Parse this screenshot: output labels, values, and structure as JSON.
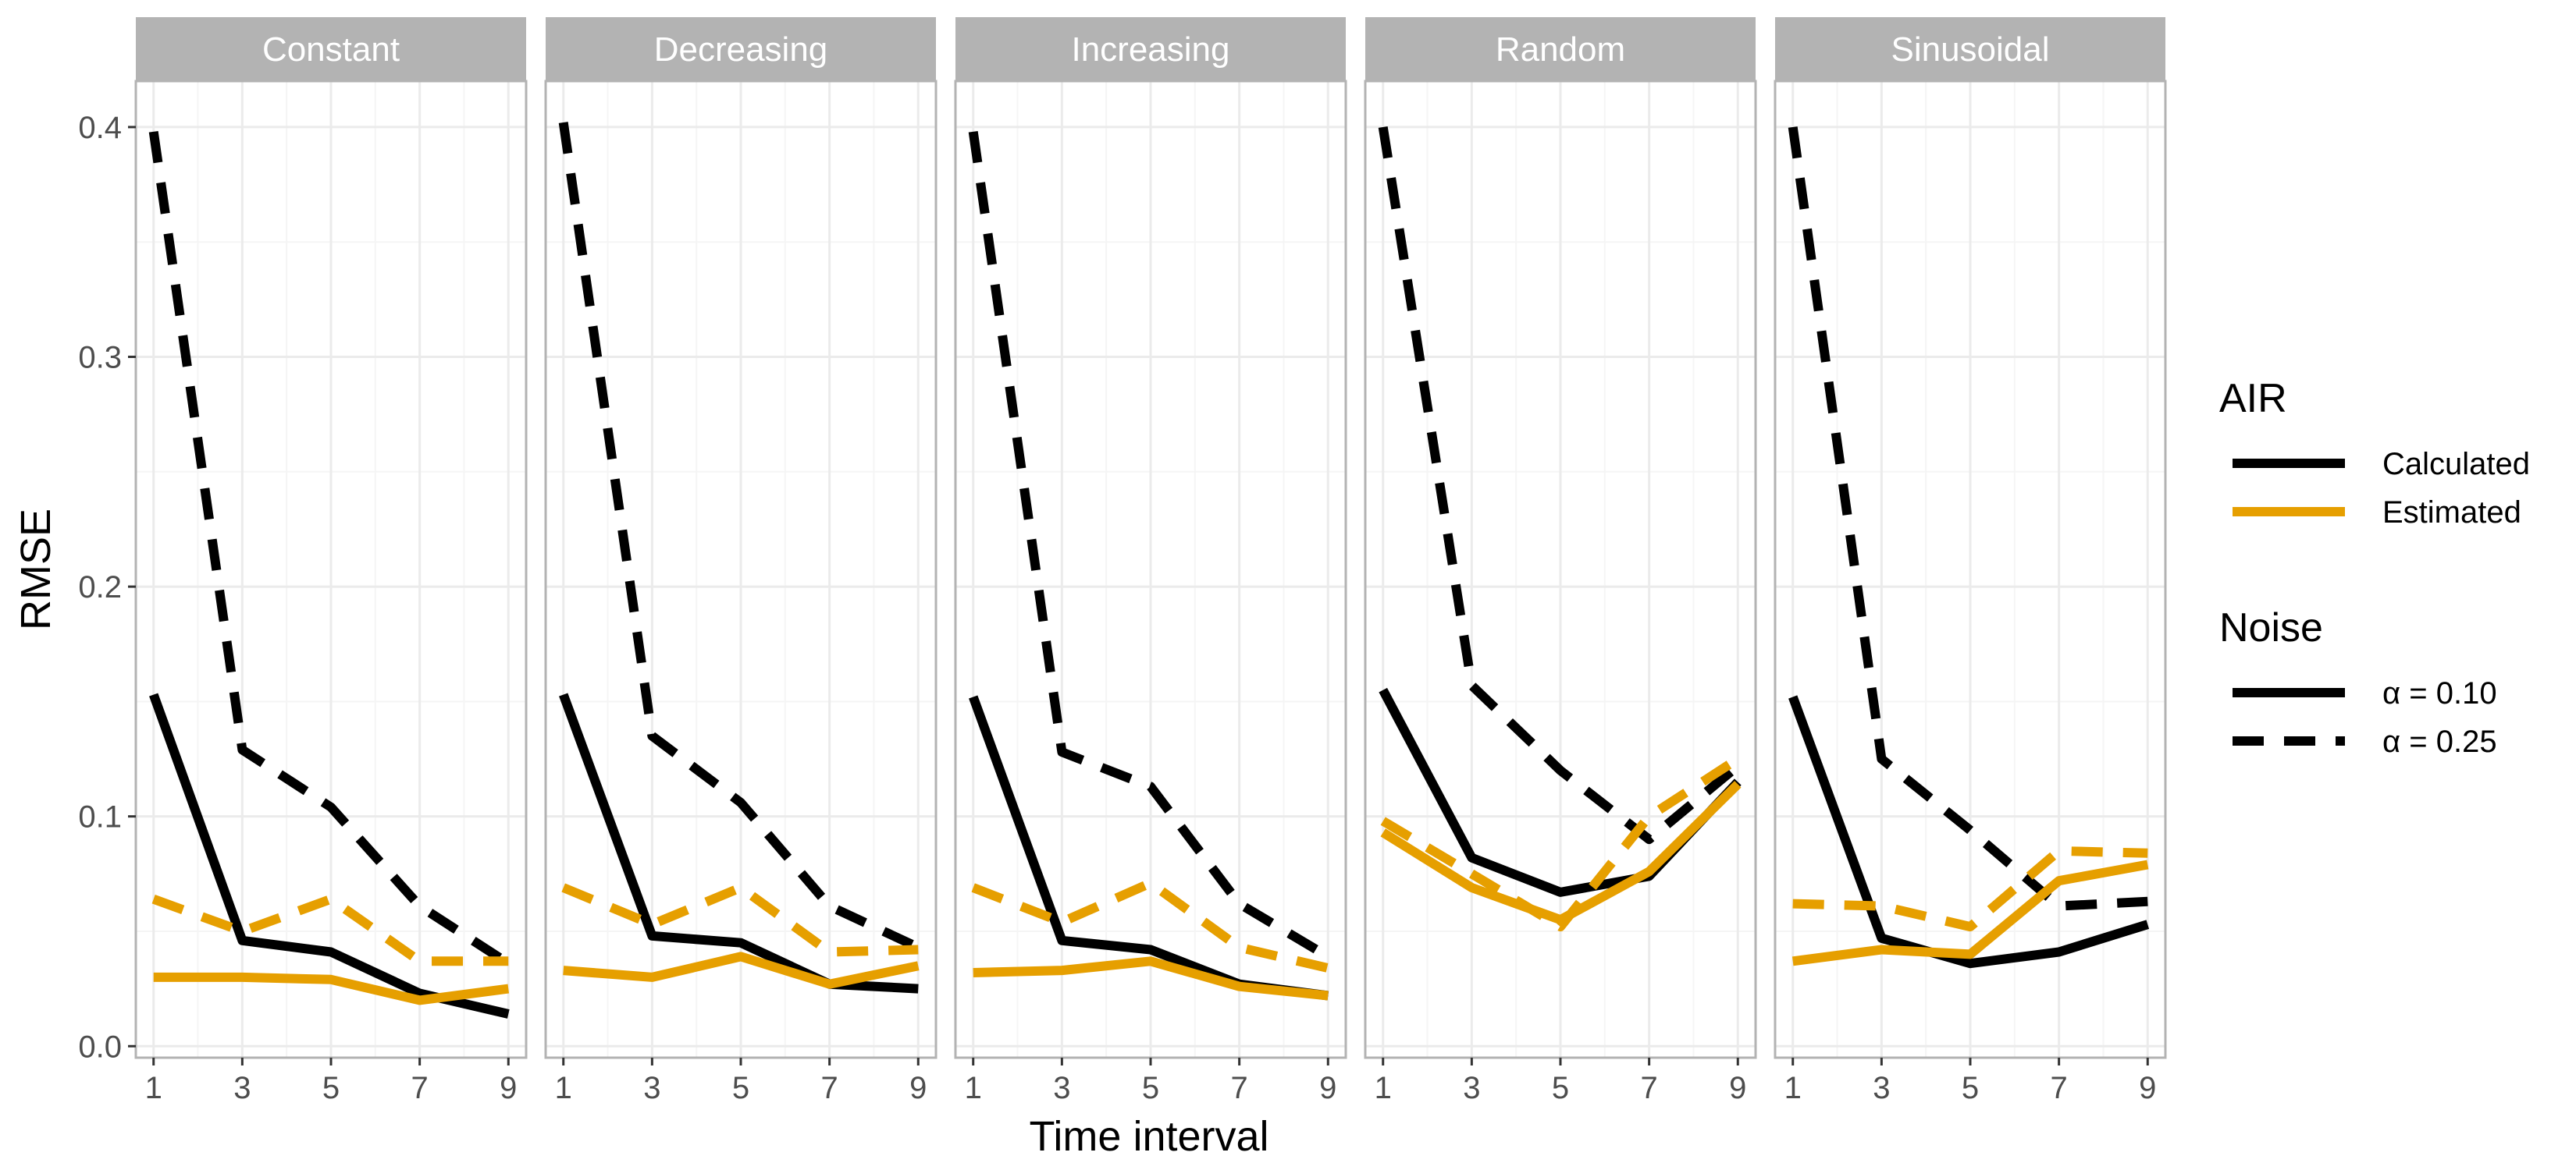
{
  "chart_data": {
    "type": "line",
    "xlabel": "Time interval",
    "ylabel": "RMSE",
    "x": [
      1,
      3,
      5,
      7,
      9
    ],
    "xticks": [
      "1",
      "3",
      "5",
      "7",
      "9"
    ],
    "xlim": [
      0.6,
      9.4
    ],
    "ylim": [
      -0.005,
      0.42
    ],
    "yticks": [
      "0.0",
      "0.1",
      "0.2",
      "0.3",
      "0.4"
    ],
    "ytick_values": [
      0.0,
      0.1,
      0.2,
      0.3,
      0.4
    ],
    "grid": true,
    "panels": [
      {
        "label": "Constant",
        "series": [
          {
            "air": "Calculated",
            "noise": "α =  0.10",
            "values": [
              0.153,
              0.046,
              0.041,
              0.023,
              0.014
            ]
          },
          {
            "air": "Calculated",
            "noise": "α =  0.25",
            "values": [
              0.398,
              0.129,
              0.104,
              0.061,
              0.036
            ]
          },
          {
            "air": "Estimated",
            "noise": "α =  0.10",
            "values": [
              0.03,
              0.03,
              0.029,
              0.02,
              0.025
            ]
          },
          {
            "air": "Estimated",
            "noise": "α =  0.25",
            "values": [
              0.064,
              0.05,
              0.064,
              0.037,
              0.037
            ]
          }
        ]
      },
      {
        "label": "Decreasing",
        "series": [
          {
            "air": "Calculated",
            "noise": "α =  0.10",
            "values": [
              0.153,
              0.048,
              0.045,
              0.027,
              0.025
            ]
          },
          {
            "air": "Calculated",
            "noise": "α =  0.25",
            "values": [
              0.402,
              0.135,
              0.106,
              0.061,
              0.043
            ]
          },
          {
            "air": "Estimated",
            "noise": "α =  0.10",
            "values": [
              0.033,
              0.03,
              0.039,
              0.027,
              0.035
            ]
          },
          {
            "air": "Estimated",
            "noise": "α =  0.25",
            "values": [
              0.069,
              0.053,
              0.069,
              0.041,
              0.042
            ]
          }
        ]
      },
      {
        "label": "Increasing",
        "series": [
          {
            "air": "Calculated",
            "noise": "α =  0.10",
            "values": [
              0.152,
              0.046,
              0.042,
              0.027,
              0.022
            ]
          },
          {
            "air": "Calculated",
            "noise": "α =  0.25",
            "values": [
              0.398,
              0.128,
              0.113,
              0.062,
              0.039
            ]
          },
          {
            "air": "Estimated",
            "noise": "α =  0.10",
            "values": [
              0.032,
              0.033,
              0.037,
              0.026,
              0.022
            ]
          },
          {
            "air": "Estimated",
            "noise": "α =  0.25",
            "values": [
              0.069,
              0.054,
              0.071,
              0.043,
              0.034
            ]
          }
        ]
      },
      {
        "label": "Random",
        "series": [
          {
            "air": "Calculated",
            "noise": "α =  0.10",
            "values": [
              0.155,
              0.082,
              0.067,
              0.074,
              0.115
            ]
          },
          {
            "air": "Calculated",
            "noise": "α =  0.25",
            "values": [
              0.4,
              0.157,
              0.12,
              0.09,
              0.122
            ]
          },
          {
            "air": "Estimated",
            "noise": "α =  0.10",
            "values": [
              0.093,
              0.069,
              0.055,
              0.076,
              0.114
            ]
          },
          {
            "air": "Estimated",
            "noise": "α =  0.25",
            "values": [
              0.098,
              0.075,
              0.052,
              0.1,
              0.125
            ]
          }
        ]
      },
      {
        "label": "Sinusoidal",
        "series": [
          {
            "air": "Calculated",
            "noise": "α =  0.10",
            "values": [
              0.152,
              0.047,
              0.036,
              0.041,
              0.053
            ]
          },
          {
            "air": "Calculated",
            "noise": "α =  0.25",
            "values": [
              0.4,
              0.125,
              0.094,
              0.061,
              0.063
            ]
          },
          {
            "air": "Estimated",
            "noise": "α =  0.10",
            "values": [
              0.037,
              0.042,
              0.04,
              0.072,
              0.079
            ]
          },
          {
            "air": "Estimated",
            "noise": "α =  0.25",
            "values": [
              0.062,
              0.061,
              0.052,
              0.085,
              0.084
            ]
          }
        ]
      }
    ],
    "legend": {
      "placement": "right",
      "groups": [
        {
          "title": "AIR",
          "entries": [
            {
              "label": "Calculated",
              "color": "#000000",
              "dash": "solid"
            },
            {
              "label": "Estimated",
              "color": "#E69F00",
              "dash": "solid"
            }
          ]
        },
        {
          "title": "Noise",
          "entries": [
            {
              "label": "α =  0.10",
              "color": "#000000",
              "dash": "solid"
            },
            {
              "label": "α =  0.25",
              "color": "#000000",
              "dash": "dashed"
            }
          ]
        }
      ]
    },
    "colors": {
      "Calculated": "#000000",
      "Estimated": "#E69F00",
      "strip_fill": "#B3B3B3",
      "grid": "#EBEBEB",
      "panel_border": "#B3B3B3"
    }
  }
}
